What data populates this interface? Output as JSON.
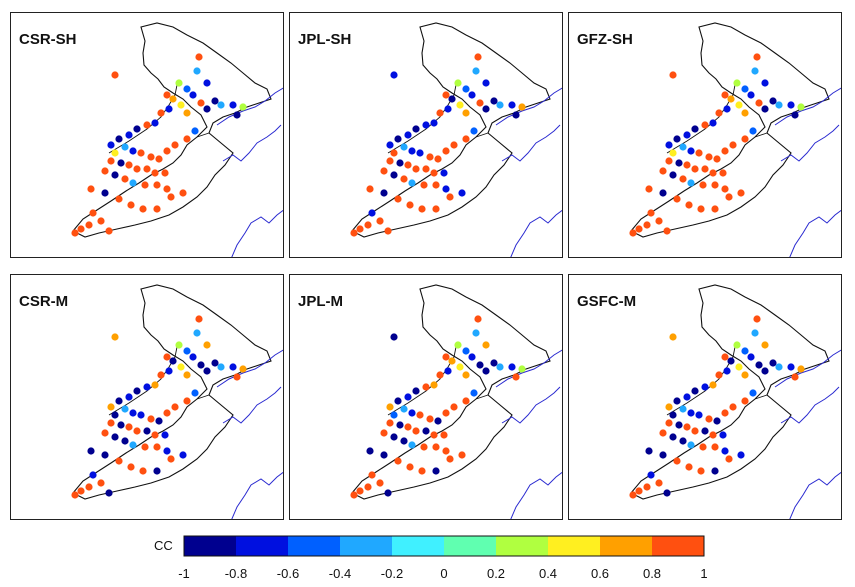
{
  "panels": [
    {
      "id": "csr-sh",
      "title": "CSR-SH"
    },
    {
      "id": "jpl-sh",
      "title": "JPL-SH"
    },
    {
      "id": "gfz-sh",
      "title": "GFZ-SH"
    },
    {
      "id": "csr-m",
      "title": "CSR-M"
    },
    {
      "id": "jpl-m",
      "title": "JPL-M"
    },
    {
      "id": "gsfc-m",
      "title": "GSFC-M"
    }
  ],
  "colorbar": {
    "label": "CC",
    "ticks": [
      "-1",
      "-0.8",
      "-0.6",
      "-0.4",
      "-0.2",
      "0",
      "0.2",
      "0.4",
      "0.6",
      "0.8",
      "1"
    ],
    "colors": [
      "#00008f",
      "#0010e0",
      "#0060ff",
      "#20a8ff",
      "#40f0ff",
      "#60ffb0",
      "#b0ff40",
      "#ffef20",
      "#ffa000",
      "#ff5010"
    ]
  },
  "colors": {
    "boundary": "#111111",
    "coastline": "#2a2ad0"
  }
}
